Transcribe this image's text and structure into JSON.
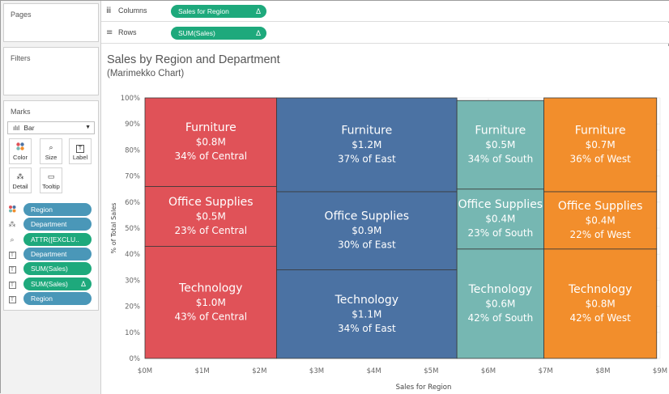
{
  "panels": {
    "pages_title": "Pages",
    "filters_title": "Filters",
    "marks_title": "Marks"
  },
  "shelves": {
    "columns": {
      "label": "Columns",
      "pill": "Sales for Region",
      "delta": "Δ"
    },
    "rows": {
      "label": "Rows",
      "pill": "SUM(Sales)",
      "delta": "Δ"
    }
  },
  "marks": {
    "type": "Bar",
    "buttons": {
      "color": "Color",
      "size": "Size",
      "label": "Label",
      "detail": "Detail",
      "tooltip": "Tooltip"
    },
    "fields": [
      {
        "text": "Region",
        "icon": "color-icon",
        "style": "blue"
      },
      {
        "text": "Department",
        "icon": "detail-icon",
        "style": "blue"
      },
      {
        "text": "ATTR([EXCLU..",
        "icon": "size-icon",
        "style": "green"
      },
      {
        "text": "Department",
        "icon": "label-icon",
        "style": "blue"
      },
      {
        "text": "SUM(Sales)",
        "icon": "label-icon",
        "style": "green"
      },
      {
        "text": "SUM(Sales)",
        "icon": "label-icon",
        "style": "green",
        "delta": "Δ"
      },
      {
        "text": "Region",
        "icon": "label-icon",
        "style": "blue"
      }
    ]
  },
  "viz": {
    "title": "Sales by Region and Department",
    "subtitle": "(Marimekko Chart)"
  },
  "colors": {
    "Central": "#e05258",
    "East": "#4b72a3",
    "South": "#76b7b2",
    "West": "#f28e2c"
  },
  "chart_data": {
    "type": "bar",
    "subtype": "marimekko",
    "xlabel": "Sales for Region",
    "ylabel": "% of Total Sales",
    "xlim": [
      0,
      9
    ],
    "x_ticks": [
      "$0M",
      "$1M",
      "$2M",
      "$3M",
      "$4M",
      "$5M",
      "$6M",
      "$7M",
      "$8M",
      "$9M"
    ],
    "ylim": [
      0,
      100
    ],
    "y_ticks": [
      "0%",
      "10%",
      "20%",
      "30%",
      "40%",
      "50%",
      "60%",
      "70%",
      "80%",
      "90%",
      "100%"
    ],
    "grid": true,
    "regions": [
      {
        "name": "Central",
        "x_start": 0,
        "x_end": 2.3,
        "segments": [
          {
            "dept": "Technology",
            "pct": 43,
            "value": "$1.0M",
            "share": "43% of Central"
          },
          {
            "dept": "Office Supplies",
            "pct": 23,
            "value": "$0.5M",
            "share": "23% of Central"
          },
          {
            "dept": "Furniture",
            "pct": 34,
            "value": "$0.8M",
            "share": "34% of Central"
          }
        ]
      },
      {
        "name": "East",
        "x_start": 2.3,
        "x_end": 5.45,
        "segments": [
          {
            "dept": "Technology",
            "pct": 34,
            "value": "$1.1M",
            "share": "34% of East"
          },
          {
            "dept": "Office Supplies",
            "pct": 30,
            "value": "$0.9M",
            "share": "30% of East"
          },
          {
            "dept": "Furniture",
            "pct": 37,
            "value": "$1.2M",
            "share": "37% of East"
          }
        ]
      },
      {
        "name": "South",
        "x_start": 5.45,
        "x_end": 6.97,
        "segments": [
          {
            "dept": "Technology",
            "pct": 42,
            "value": "$0.6M",
            "share": "42% of South"
          },
          {
            "dept": "Office Supplies",
            "pct": 23,
            "value": "$0.4M",
            "share": "23% of South"
          },
          {
            "dept": "Furniture",
            "pct": 34,
            "value": "$0.5M",
            "share": "34% of South"
          }
        ]
      },
      {
        "name": "West",
        "x_start": 6.97,
        "x_end": 8.94,
        "segments": [
          {
            "dept": "Technology",
            "pct": 42,
            "value": "$0.8M",
            "share": "42% of West"
          },
          {
            "dept": "Office Supplies",
            "pct": 22,
            "value": "$0.4M",
            "share": "22% of West"
          },
          {
            "dept": "Furniture",
            "pct": 36,
            "value": "$0.7M",
            "share": "36% of West"
          }
        ]
      }
    ]
  }
}
